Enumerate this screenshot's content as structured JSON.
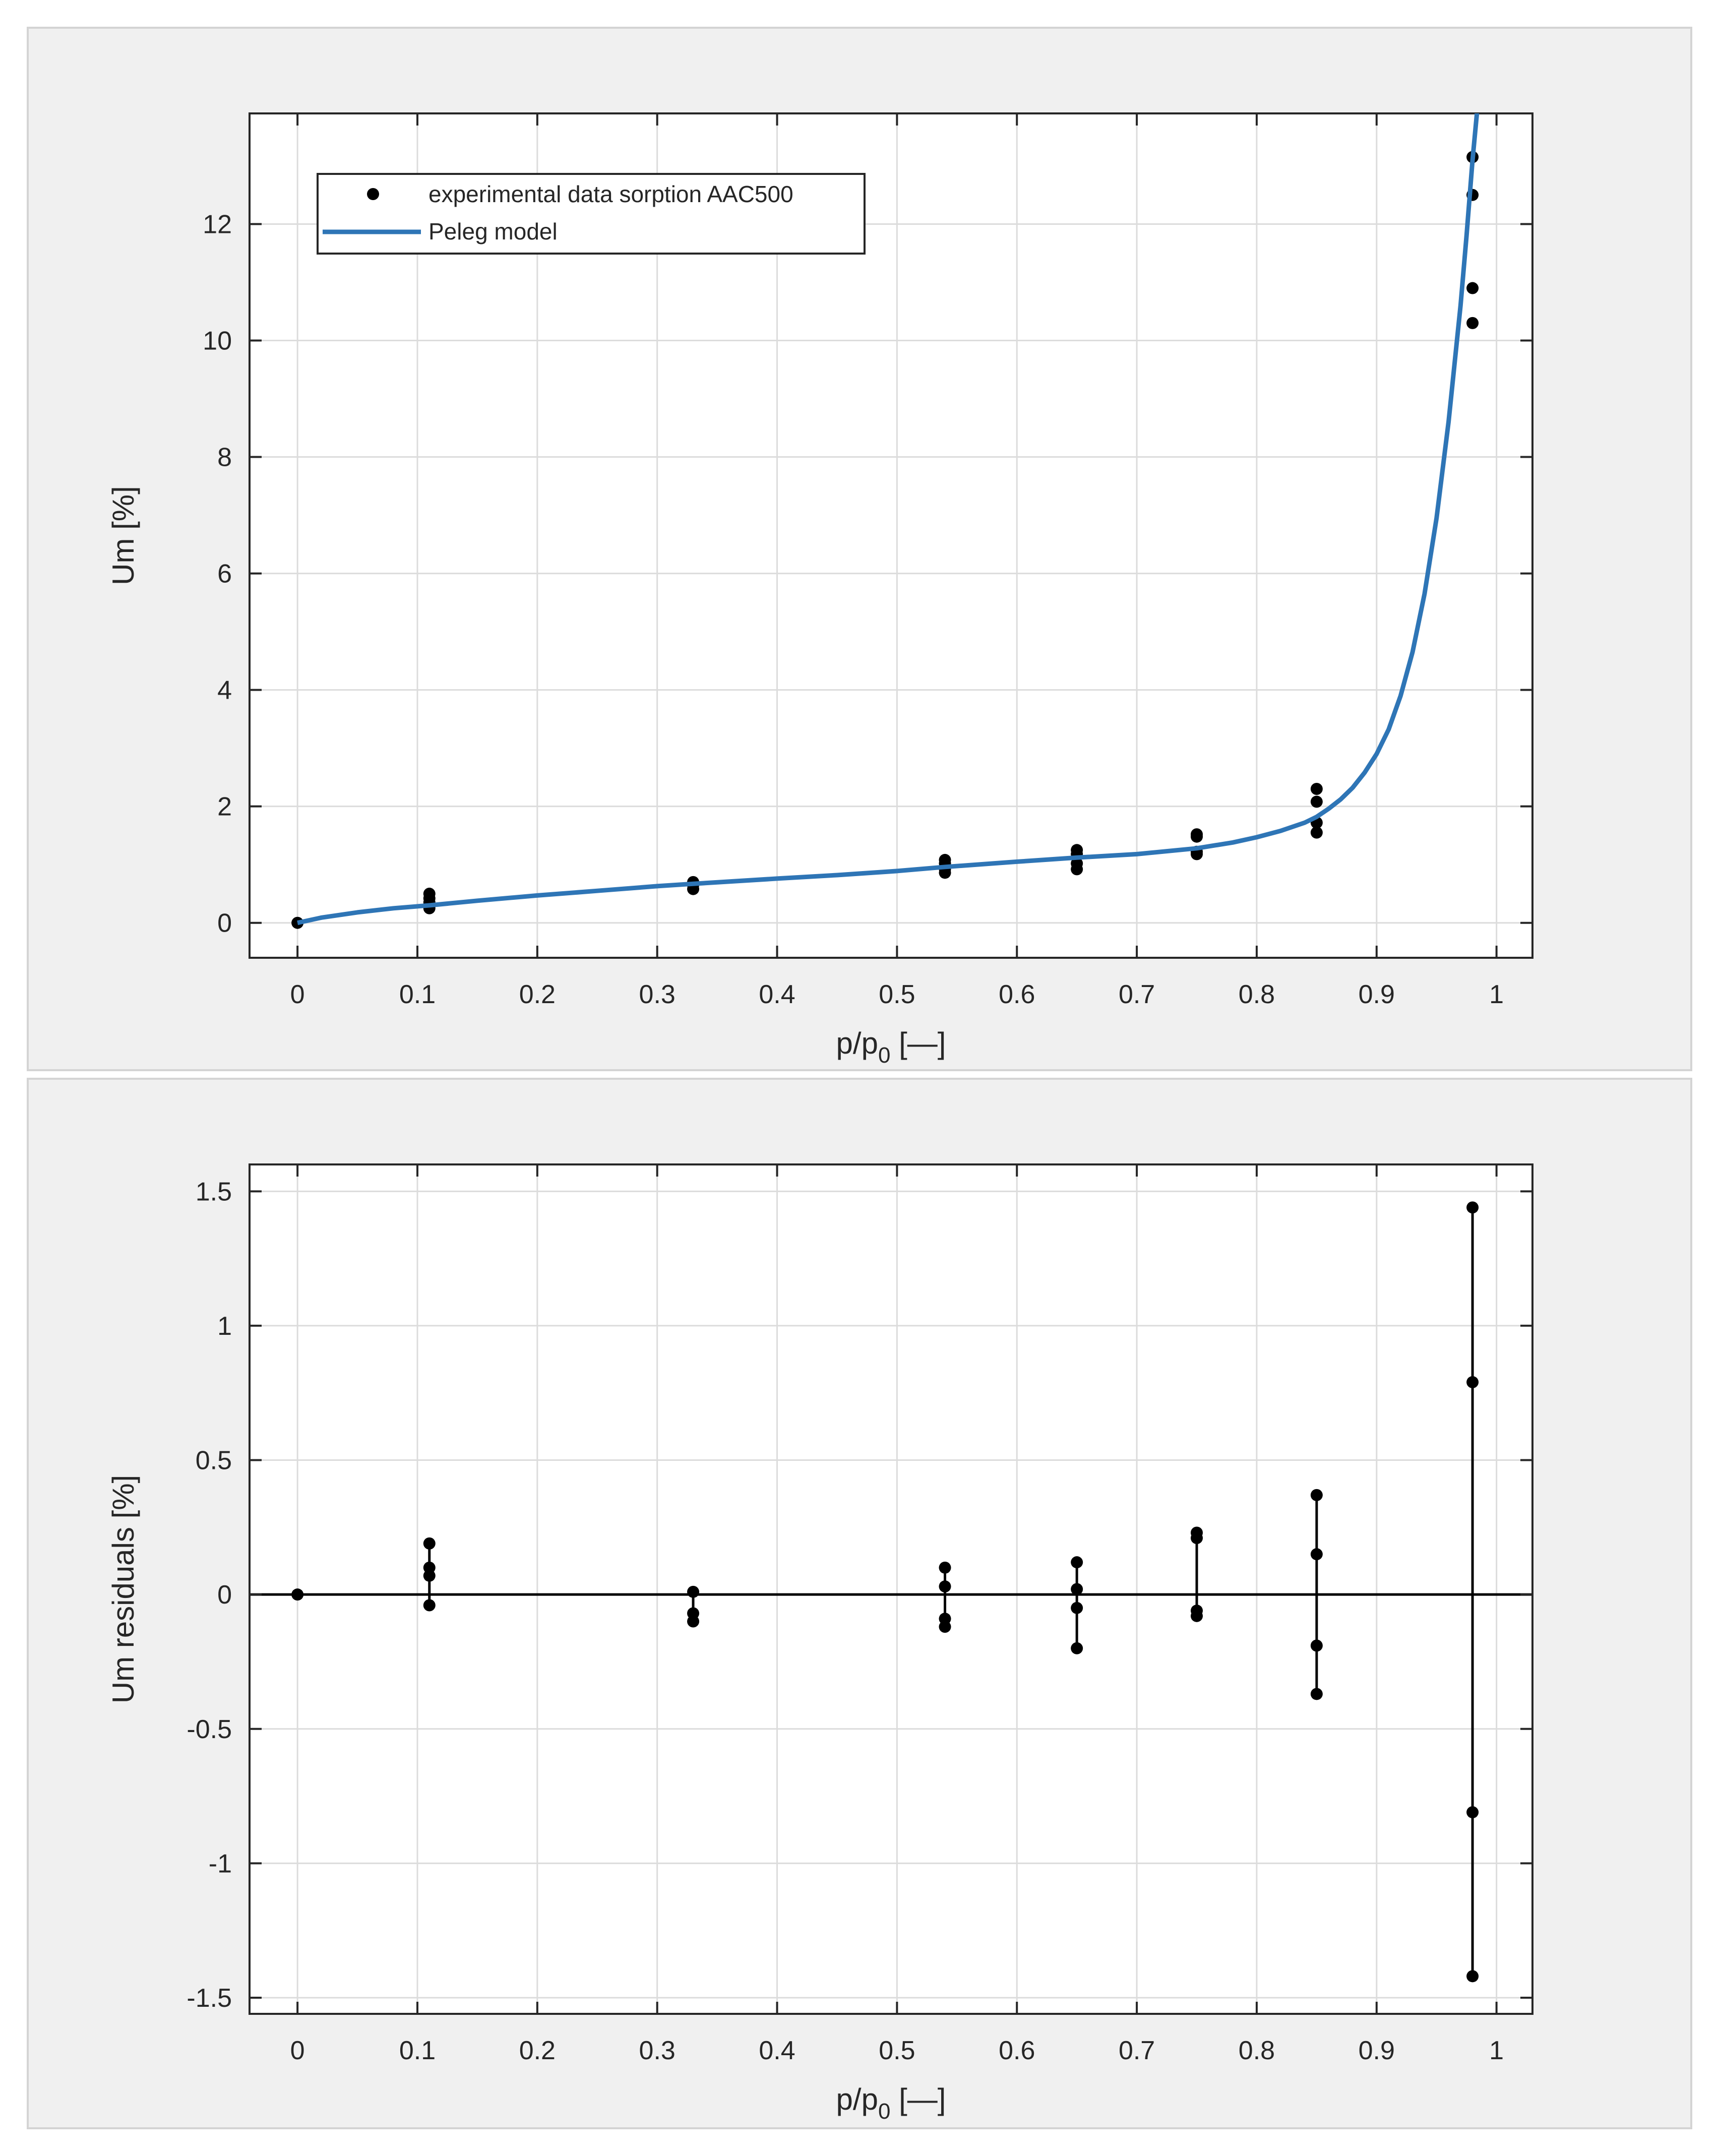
{
  "chart_data": [
    {
      "type": "scatter",
      "xlabel": "p/p",
      "xlabel_sub": "0",
      "xlabel_unit": " [—]",
      "ylabel": "Um [%]",
      "xlim": [
        -0.04,
        1.03
      ],
      "ylim": [
        -0.6,
        13.9
      ],
      "xticks": [
        0,
        0.1,
        0.2,
        0.3,
        0.4,
        0.5,
        0.6,
        0.7,
        0.8,
        0.9,
        1
      ],
      "xtick_labels": [
        "0",
        "0.1",
        "0.2",
        "0.3",
        "0.4",
        "0.5",
        "0.6",
        "0.7",
        "0.8",
        "0.9",
        "1"
      ],
      "yticks": [
        0,
        2,
        4,
        6,
        8,
        10,
        12
      ],
      "ytick_labels": [
        "0",
        "2",
        "4",
        "6",
        "8",
        "10",
        "12"
      ],
      "grid": true,
      "legend": {
        "position": "top-left",
        "entries": [
          "experimental data sorption AAC500",
          "Peleg model"
        ]
      },
      "series": [
        {
          "name": "experimental data sorption AAC500",
          "kind": "points",
          "color": "#000000",
          "x": [
            0,
            0.11,
            0.11,
            0.11,
            0.11,
            0.33,
            0.33,
            0.33,
            0.54,
            0.54,
            0.54,
            0.54,
            0.65,
            0.65,
            0.65,
            0.65,
            0.75,
            0.75,
            0.75,
            0.75,
            0.85,
            0.85,
            0.85,
            0.85,
            0.98,
            0.98,
            0.98,
            0.98
          ],
          "y": [
            0,
            0.5,
            0.42,
            0.35,
            0.25,
            0.7,
            0.65,
            0.58,
            1.08,
            1.02,
            0.92,
            0.86,
            1.25,
            1.18,
            1.02,
            0.92,
            1.52,
            1.48,
            1.22,
            1.18,
            2.3,
            2.08,
            1.72,
            1.55,
            13.15,
            12.5,
            10.9,
            10.3
          ]
        },
        {
          "name": "Peleg model",
          "kind": "line",
          "color": "#2e75b6",
          "x": [
            0,
            0.02,
            0.05,
            0.08,
            0.11,
            0.15,
            0.2,
            0.25,
            0.3,
            0.33,
            0.4,
            0.45,
            0.5,
            0.54,
            0.6,
            0.65,
            0.7,
            0.75,
            0.78,
            0.8,
            0.82,
            0.84,
            0.85,
            0.86,
            0.87,
            0.88,
            0.89,
            0.9,
            0.91,
            0.92,
            0.93,
            0.94,
            0.95,
            0.96,
            0.97,
            0.975,
            0.98,
            0.985
          ],
          "y": [
            0,
            0.09,
            0.18,
            0.25,
            0.3,
            0.38,
            0.47,
            0.55,
            0.63,
            0.67,
            0.76,
            0.82,
            0.89,
            0.96,
            1.05,
            1.12,
            1.18,
            1.28,
            1.38,
            1.47,
            1.58,
            1.72,
            1.82,
            1.96,
            2.12,
            2.32,
            2.58,
            2.9,
            3.32,
            3.9,
            4.65,
            5.65,
            6.95,
            8.6,
            10.6,
            11.8,
            13.1,
            14.2
          ]
        }
      ]
    },
    {
      "type": "scatter",
      "xlabel": "p/p",
      "xlabel_sub": "0",
      "xlabel_unit": " [—]",
      "ylabel": "Um residuals [%]",
      "xlim": [
        -0.04,
        1.03
      ],
      "ylim": [
        -1.56,
        1.6
      ],
      "xticks": [
        0,
        0.1,
        0.2,
        0.3,
        0.4,
        0.5,
        0.6,
        0.7,
        0.8,
        0.9,
        1
      ],
      "xtick_labels": [
        "0",
        "0.1",
        "0.2",
        "0.3",
        "0.4",
        "0.5",
        "0.6",
        "0.7",
        "0.8",
        "0.9",
        "1"
      ],
      "yticks": [
        -1.5,
        -1,
        -0.5,
        0,
        0.5,
        1,
        1.5
      ],
      "ytick_labels": [
        "-1.5",
        "-1",
        "-0.5",
        "0",
        "0.5",
        "1",
        "1.5"
      ],
      "grid": true,
      "zero_line": true,
      "series": [
        {
          "kind": "residual-points",
          "color": "#000000",
          "x": [
            0,
            0.11,
            0.11,
            0.11,
            0.11,
            0.33,
            0.33,
            0.33,
            0.54,
            0.54,
            0.54,
            0.54,
            0.65,
            0.65,
            0.65,
            0.65,
            0.75,
            0.75,
            0.75,
            0.75,
            0.85,
            0.85,
            0.85,
            0.85,
            0.98,
            0.98,
            0.98,
            0.98
          ],
          "y": [
            0,
            0.19,
            0.1,
            0.07,
            -0.04,
            0.01,
            -0.07,
            -0.1,
            0.1,
            0.03,
            -0.09,
            -0.12,
            0.12,
            0.02,
            -0.05,
            -0.2,
            0.23,
            0.21,
            -0.06,
            -0.08,
            0.37,
            0.15,
            -0.19,
            -0.37,
            1.44,
            0.79,
            -0.81,
            -1.42
          ]
        }
      ]
    }
  ]
}
